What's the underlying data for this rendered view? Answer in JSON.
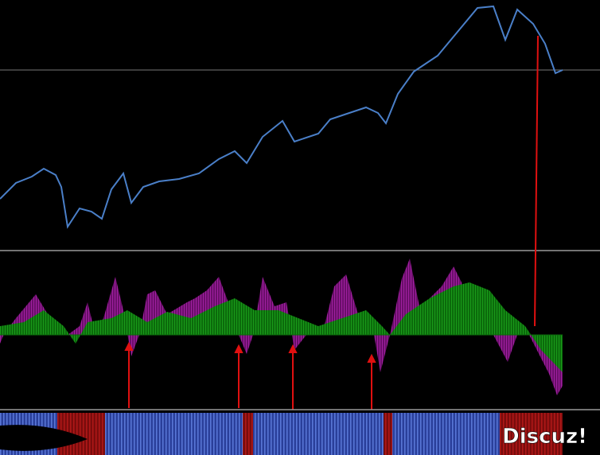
{
  "watermark": "Discuz!"
}
